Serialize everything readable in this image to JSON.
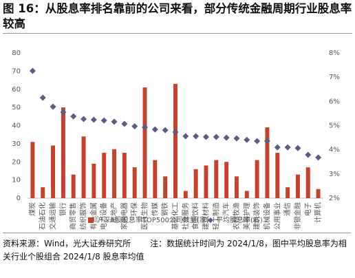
{
  "chart_data": {
    "type": "bar-line",
    "title": "图 16：从股息率排名靠前的公司来看，部分传统金融周期行业股息率较高",
    "source": "资料来源：Wind，光大证券研究所",
    "note": "注：数据统计时间为 2024/1/8，图中平均股息率为相关行业个股组合 2024/1/8 股息率均值",
    "categories": [
      "煤炭",
      "石油石化",
      "交通运输",
      "银行",
      "商贸零售",
      "纺织服饰",
      "有色金属",
      "电力设备",
      "房地产",
      "家用电器",
      "环保",
      "医药生物",
      "传媒",
      "钢铁",
      "基础化工",
      "社会服务",
      "食品饮料",
      "建筑材料",
      "轻工制造",
      "汽车",
      "农林牧渔",
      "美容护理",
      "建筑装饰",
      "机械设备",
      "公用事业",
      "通信",
      "非银金融",
      "电子",
      "计算机"
    ],
    "series": [
      {
        "name": "沪深A股股息率TOP500公司数量(家)",
        "color": "#c5412c",
        "type": "bar",
        "values": [
          31,
          6,
          29,
          50,
          13,
          34,
          19,
          25,
          27,
          25,
          17,
          61,
          21,
          12,
          63,
          4,
          16,
          18,
          21,
          20,
          12,
          4,
          21,
          39,
          25,
          6,
          13,
          17,
          5
        ]
      },
      {
        "name": "平均股息率(右)",
        "color": "#5b5b86",
        "type": "scatter",
        "axis": "y2",
        "values": [
          7.26,
          6.15,
          5.78,
          5.55,
          5.38,
          5.27,
          5.24,
          5.21,
          5.16,
          5.07,
          4.97,
          4.93,
          4.84,
          4.81,
          4.73,
          4.56,
          4.56,
          4.53,
          4.53,
          4.5,
          4.47,
          4.41,
          4.36,
          4.36,
          4.1,
          4.1,
          4.07,
          3.79,
          3.68
        ]
      }
    ],
    "ylim": [
      0,
      80
    ],
    "yticks": [
      0,
      10,
      20,
      30,
      40,
      50,
      60,
      70,
      80
    ],
    "y2lim": [
      2,
      8
    ],
    "y2ticks": [
      {
        "value": 2,
        "label": "2%"
      },
      {
        "value": 3,
        "label": "3%"
      },
      {
        "value": 4,
        "label": "4%"
      },
      {
        "value": 5,
        "label": "5%"
      },
      {
        "value": 6,
        "label": "6%"
      },
      {
        "value": 7,
        "label": "7%"
      },
      {
        "value": 8,
        "label": "8%"
      }
    ],
    "grid": false,
    "legend": "bottom"
  }
}
